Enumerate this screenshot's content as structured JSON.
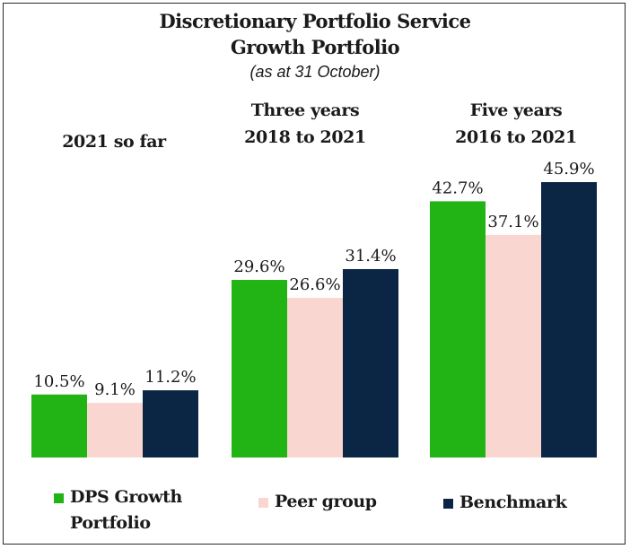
{
  "chart_data": {
    "type": "bar",
    "title_line1": "Discretionary Portfolio Service",
    "title_line2": "Growth Portfolio",
    "subtitle": "(as at 31 October)",
    "categories": [
      {
        "line1": "2021 so far",
        "line2": ""
      },
      {
        "line1": "Three years",
        "line2": "2018 to 2021"
      },
      {
        "line1": "Five years",
        "line2": "2016 to 2021"
      }
    ],
    "series": [
      {
        "name": "DPS Growth Portfolio",
        "name_line1": "DPS Growth",
        "name_line2": "Portfolio",
        "color": "#22b414",
        "values": [
          10.5,
          29.6,
          42.7
        ],
        "labels": [
          "10.5%",
          "29.6%",
          "42.7%"
        ]
      },
      {
        "name": "Peer group",
        "name_line1": "Peer group",
        "name_line2": "",
        "color": "#f9d7d0",
        "values": [
          9.1,
          26.6,
          37.1
        ],
        "labels": [
          "9.1%",
          "26.6%",
          "37.1%"
        ]
      },
      {
        "name": "Benchmark",
        "name_line1": "Benchmark",
        "name_line2": "",
        "color": "#0b2545",
        "values": [
          11.2,
          31.4,
          45.9
        ],
        "labels": [
          "11.2%",
          "31.4%",
          "45.9%"
        ]
      }
    ],
    "ylim": [
      0,
      45.9
    ],
    "grid": false,
    "legend_position": "bottom"
  }
}
